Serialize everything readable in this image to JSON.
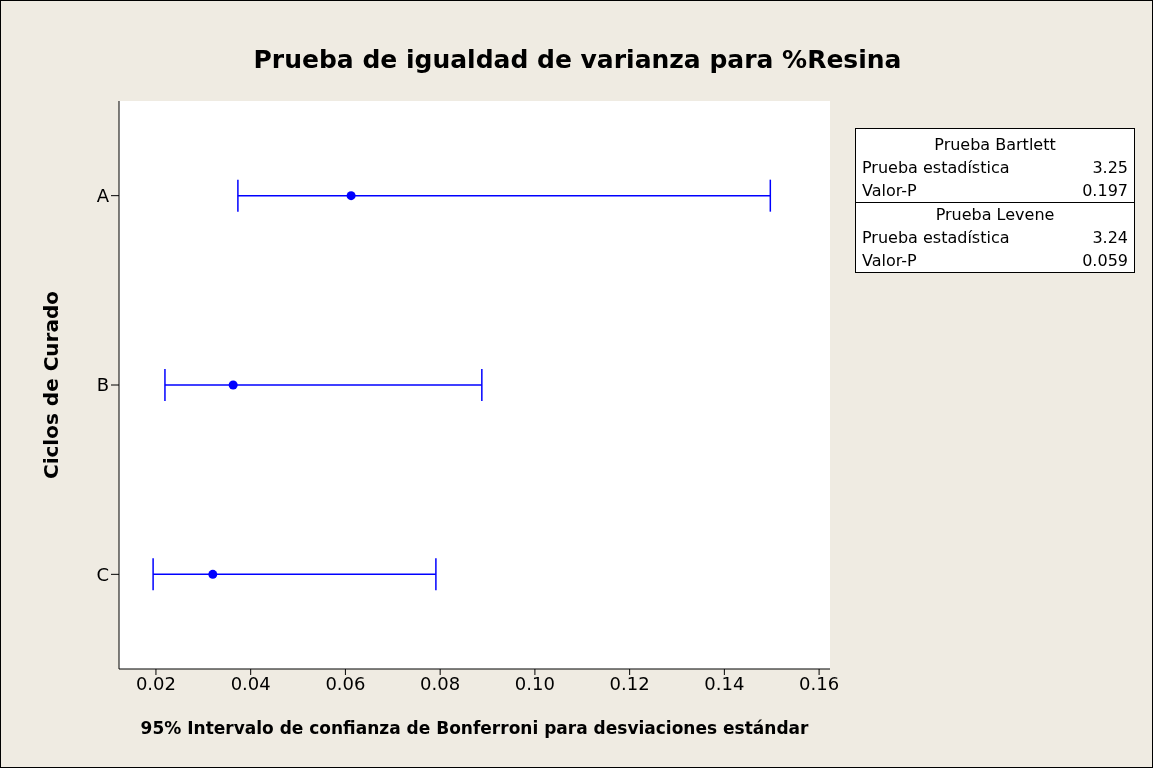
{
  "chart_data": {
    "type": "scatter",
    "orientation": "horizontal",
    "title": "Prueba de igualdad de varianza para %Resina",
    "xlabel": "95% Intervalo de confianza de Bonferroni para desviaciones estándar",
    "ylabel": "Ciclos de Curado",
    "categories": [
      "A",
      "B",
      "C"
    ],
    "values": [
      0.0612,
      0.0363,
      0.032
    ],
    "errors": [
      [
        0.0373,
        0.1497
      ],
      [
        0.0219,
        0.0888
      ],
      [
        0.0194,
        0.0791
      ]
    ],
    "color": "#0000ff",
    "marker": "circle",
    "xlim": [
      0.0122,
      0.1623
    ],
    "xticks": [
      {
        "value": 0.02,
        "label": "0.02"
      },
      {
        "value": 0.04,
        "label": "0.04"
      },
      {
        "value": 0.06,
        "label": "0.06"
      },
      {
        "value": 0.08,
        "label": "0.08"
      },
      {
        "value": 0.1,
        "label": "0.10"
      },
      {
        "value": 0.12,
        "label": "0.12"
      },
      {
        "value": 0.14,
        "label": "0.14"
      },
      {
        "value": 0.16,
        "label": "0.16"
      }
    ],
    "grid": false,
    "legend": false,
    "annotations": [
      "Prueba Bartlett",
      "Prueba estadística",
      "3.25",
      "Valor-P",
      "0.197",
      "Prueba Levene",
      "Prueba estadística",
      "3.24",
      "Valor-P",
      "0.059"
    ]
  }
}
